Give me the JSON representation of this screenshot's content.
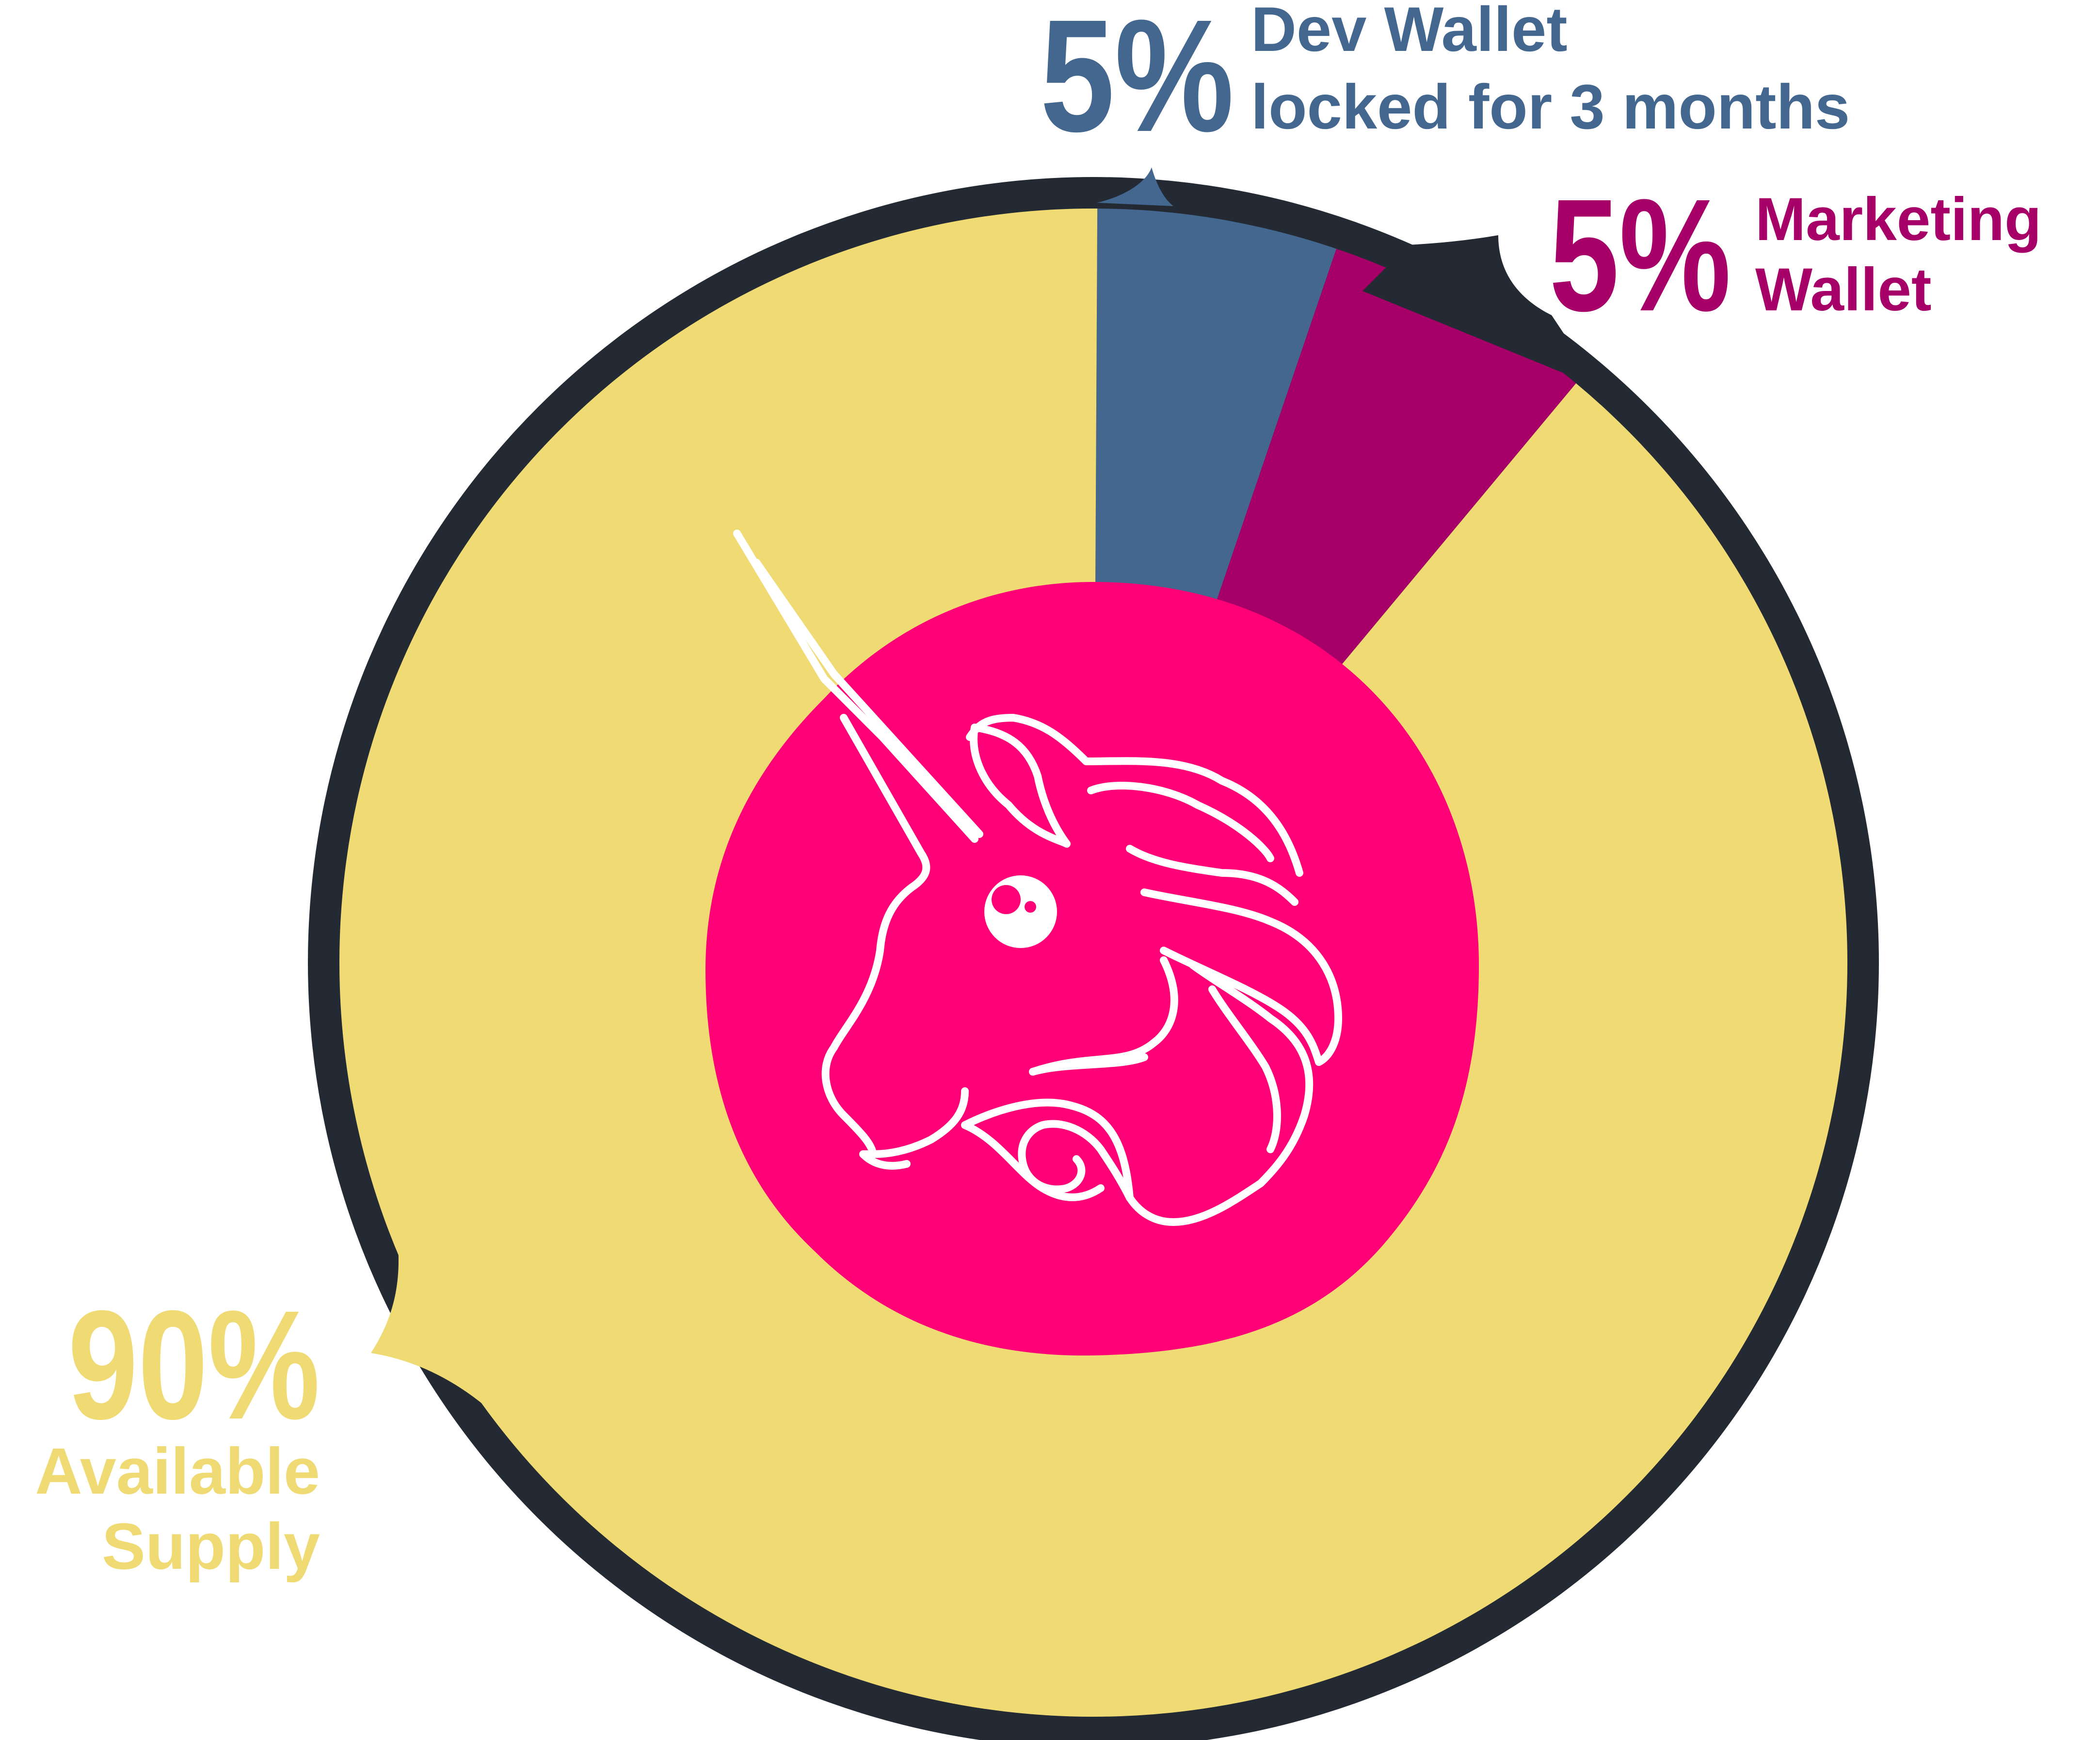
{
  "colors": {
    "ring": "#232a33",
    "available": "#f0da74",
    "dev": "#43678e",
    "marketing": "#a60068",
    "center": "#ff0077",
    "logo": "#ffffff",
    "background": "#ffffff"
  },
  "center_icon": "unicorn-logo-icon",
  "chart_data": {
    "type": "pie",
    "variant": "donut",
    "grid": false,
    "legend": "none",
    "slices": [
      {
        "key": "dev",
        "percent_label": "5%",
        "label_lines": [
          "Dev Wallet",
          "locked for 3 months"
        ],
        "value": 5
      },
      {
        "key": "marketing",
        "percent_label": "5%",
        "label_lines": [
          "Marketing",
          "Wallet"
        ],
        "value": 5
      },
      {
        "key": "available",
        "percent_label": "90%",
        "label_lines": [
          "Available",
          "Supply"
        ],
        "value": 90
      }
    ]
  }
}
